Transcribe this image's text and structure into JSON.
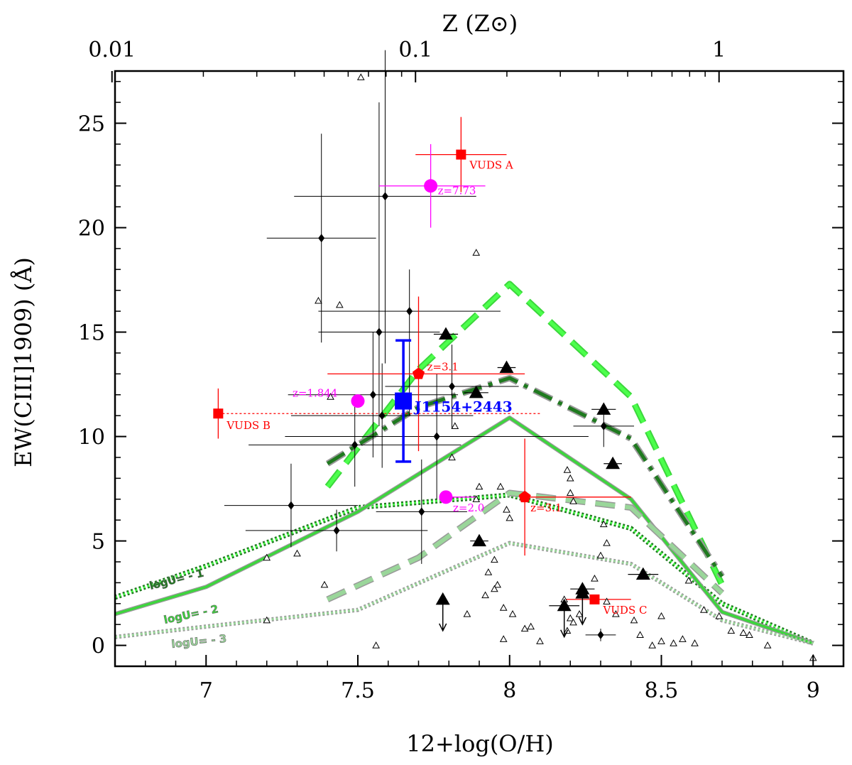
{
  "chart_data": {
    "type": "scatter",
    "title": "",
    "xlabel": "12+log(O/H)",
    "ylabel": "EW(CIII]1909) (Å)",
    "top_xlabel": "Z (Z⊙)",
    "xlim": [
      6.7,
      9.1
    ],
    "ylim": [
      -1,
      27.5
    ],
    "x_ticks": [
      7,
      7.5,
      8,
      8.5,
      9
    ],
    "x_tick_labels": [
      "7",
      "7.5",
      "8",
      "8.5",
      "9"
    ],
    "y_ticks": [
      0,
      5,
      10,
      15,
      20,
      25
    ],
    "y_tick_labels": [
      "0",
      "5",
      "10",
      "15",
      "20",
      "25"
    ],
    "top_ticks": [
      {
        "oh": 6.69,
        "label": "0.01"
      },
      {
        "oh": 7.69,
        "label": "0.1"
      },
      {
        "oh": 8.69,
        "label": "1"
      }
    ],
    "colors": {
      "models_u1": "#1f7a1f",
      "models_u1_core": "#4cff4c",
      "models_u2": "#3cd63c",
      "models_u2_edge": "#999999",
      "models_u3": "#9ad69a",
      "vuds": "#ff0000",
      "highz": "#ff00ff",
      "target": "#0000ff"
    },
    "models": [
      {
        "name": "logU=-1",
        "label": "logU= - 1",
        "style": "dotted-dark",
        "x": [
          6.7,
          7.0,
          7.5,
          8.0,
          8.4,
          8.7,
          9.0
        ],
        "y": [
          2.3,
          3.8,
          6.6,
          7.2,
          5.6,
          2.0,
          0.1
        ]
      },
      {
        "name": "logU=-2",
        "label": "logU= - 2",
        "style": "solid-green",
        "x": [
          6.7,
          7.0,
          7.5,
          8.0,
          8.4,
          8.7,
          9.0
        ],
        "y": [
          1.5,
          2.8,
          6.4,
          10.9,
          7.0,
          1.6,
          0.1
        ]
      },
      {
        "name": "logU=-3",
        "label": "logU= - 3",
        "style": "dotted-light",
        "x": [
          6.7,
          7.0,
          7.5,
          8.0,
          8.4,
          8.7,
          9.0
        ],
        "y": [
          0.4,
          0.9,
          1.7,
          4.9,
          3.9,
          1.2,
          0.1
        ]
      },
      {
        "name": "dash-bright",
        "style": "dashed-bright",
        "x": [
          7.4,
          7.7,
          8.0,
          8.4,
          8.7
        ],
        "y": [
          7.6,
          13.2,
          17.3,
          11.9,
          2.9
        ]
      },
      {
        "name": "dash-dark",
        "style": "dashed-dark",
        "x": [
          7.4,
          7.7,
          8.0,
          8.4,
          8.7
        ],
        "y": [
          8.7,
          11.4,
          12.8,
          9.9,
          3.3
        ]
      },
      {
        "name": "dash-light",
        "style": "dashed-light",
        "x": [
          7.4,
          7.7,
          8.0,
          8.4,
          8.7
        ],
        "y": [
          2.2,
          4.2,
          7.3,
          6.6,
          2.5
        ]
      }
    ],
    "literature_diamonds": [
      {
        "x": 7.38,
        "y": 19.5,
        "xerr": 0.18,
        "yerr": [
          5.0,
          5.0
        ]
      },
      {
        "x": 7.59,
        "y": 21.5,
        "xerr": 0.3,
        "yerr": [
          8.0,
          7.0
        ]
      },
      {
        "x": 7.57,
        "y": 15.0,
        "xerr": 0.2,
        "yerr": [
          4.5,
          11.0
        ]
      },
      {
        "x": 7.67,
        "y": 16.0,
        "xerr": 0.3,
        "yerr": [
          5.0,
          2.0
        ]
      },
      {
        "x": 7.55,
        "y": 12.0,
        "xerr": 0.28,
        "yerr": [
          3.0,
          3.0
        ]
      },
      {
        "x": 7.81,
        "y": 12.4,
        "xerr": 0.22,
        "yerr": [
          2.0,
          2.0
        ]
      },
      {
        "x": 7.58,
        "y": 11.0,
        "xerr": 0.3,
        "yerr": [
          2.5,
          2.5
        ]
      },
      {
        "x": 7.49,
        "y": 9.6,
        "xerr": 0.35,
        "yerr": [
          2.0,
          2.0
        ]
      },
      {
        "x": 7.76,
        "y": 10.0,
        "xerr": 0.5,
        "yerr": [
          3.0,
          3.0
        ]
      },
      {
        "x": 7.28,
        "y": 6.7,
        "xerr": 0.22,
        "yerr": [
          2.0,
          2.0
        ]
      },
      {
        "x": 7.43,
        "y": 5.5,
        "xerr": 0.3,
        "yerr": [
          1.0,
          1.0
        ]
      },
      {
        "x": 7.71,
        "y": 6.4,
        "xerr": 0.15,
        "yerr": [
          2.5,
          2.5
        ]
      },
      {
        "x": 8.31,
        "y": 10.5,
        "xerr": 0.1,
        "yerr": [
          1.0,
          1.0
        ]
      },
      {
        "x": 8.3,
        "y": 0.5,
        "xerr": 0.05,
        "yerr": [
          0.3,
          0.3
        ]
      }
    ],
    "open_triangles": [
      [
        7.51,
        27.2
      ],
      [
        7.37,
        16.5
      ],
      [
        7.44,
        16.3
      ],
      [
        7.89,
        18.8
      ],
      [
        7.82,
        10.5
      ],
      [
        7.9,
        7.6
      ],
      [
        7.41,
        11.9
      ],
      [
        7.97,
        7.6
      ],
      [
        7.81,
        9.0
      ],
      [
        7.89,
        7.0
      ],
      [
        7.99,
        6.5
      ],
      [
        8.0,
        6.1
      ],
      [
        8.19,
        8.4
      ],
      [
        8.2,
        8.0
      ],
      [
        8.2,
        7.3
      ],
      [
        8.21,
        6.9
      ],
      [
        8.31,
        5.8
      ],
      [
        8.3,
        4.3
      ],
      [
        8.28,
        3.2
      ],
      [
        8.32,
        4.9
      ],
      [
        8.59,
        3.1
      ],
      [
        8.64,
        1.7
      ],
      [
        7.2,
        4.2
      ],
      [
        7.3,
        4.4
      ],
      [
        7.39,
        2.9
      ],
      [
        7.2,
        1.2
      ],
      [
        7.56,
        0.0
      ],
      [
        7.86,
        1.5
      ],
      [
        7.92,
        2.4
      ],
      [
        7.93,
        3.5
      ],
      [
        7.95,
        4.1
      ],
      [
        7.96,
        2.9
      ],
      [
        7.95,
        2.7
      ],
      [
        7.98,
        1.8
      ],
      [
        8.01,
        1.5
      ],
      [
        7.98,
        0.3
      ],
      [
        8.05,
        0.8
      ],
      [
        8.07,
        0.9
      ],
      [
        8.1,
        0.2
      ],
      [
        8.18,
        2.2
      ],
      [
        8.2,
        1.3
      ],
      [
        8.19,
        0.7
      ],
      [
        8.21,
        1.1
      ],
      [
        8.23,
        1.5
      ],
      [
        8.32,
        2.1
      ],
      [
        8.35,
        1.5
      ],
      [
        8.41,
        1.2
      ],
      [
        8.5,
        1.4
      ],
      [
        8.5,
        0.2
      ],
      [
        8.54,
        0.1
      ],
      [
        8.57,
        0.3
      ],
      [
        8.61,
        0.1
      ],
      [
        8.69,
        1.4
      ],
      [
        8.73,
        0.7
      ],
      [
        8.77,
        0.6
      ],
      [
        8.79,
        0.5
      ],
      [
        8.85,
        0.0
      ],
      [
        9.0,
        -0.6
      ],
      [
        8.43,
        0.5
      ],
      [
        8.47,
        0.0
      ]
    ],
    "filled_triangles": [
      {
        "x": 7.79,
        "y": 14.9,
        "xerr": 0.04
      },
      {
        "x": 7.99,
        "y": 13.3,
        "xerr": 0.03
      },
      {
        "x": 7.89,
        "y": 12.1,
        "xerr": 0.04
      },
      {
        "x": 8.31,
        "y": 11.3,
        "xerr": 0.04
      },
      {
        "x": 8.34,
        "y": 8.7,
        "xerr": 0.03
      },
      {
        "x": 7.9,
        "y": 5.0,
        "xerr": 0.03
      },
      {
        "x": 8.44,
        "y": 3.4,
        "xerr": 0.05
      },
      {
        "x": 8.24,
        "y": 2.7,
        "xerr": 0.04
      },
      {
        "x": 8.18,
        "y": 1.9,
        "xerr": 0.05,
        "upper": true
      },
      {
        "x": 7.78,
        "y": 2.2,
        "xerr": 0.0,
        "upper": true
      },
      {
        "x": 8.24,
        "y": 2.5,
        "xerr": 0.0,
        "upper": true
      }
    ],
    "vuds": [
      {
        "label": "VUDS A",
        "x": 7.84,
        "y": 23.5,
        "xerr": [
          0.15,
          0.15
        ],
        "yerr": [
          1.8,
          1.8
        ]
      },
      {
        "label": "VUDS B",
        "x": 7.04,
        "y": 11.1,
        "xerr": [
          0.0,
          1.06
        ],
        "yerr": [
          1.2,
          1.2
        ]
      },
      {
        "label": "VUDS C",
        "x": 8.28,
        "y": 2.2,
        "xerr": [
          0.1,
          0.12
        ],
        "yerr": [
          0.0,
          0.0
        ]
      }
    ],
    "red_pentagons": [
      {
        "label": "z=3.1",
        "x": 7.7,
        "y": 13.0,
        "xerr": [
          0.3,
          0.35
        ],
        "yerr": [
          3.7,
          3.7
        ]
      },
      {
        "label": "z=3.1",
        "x": 8.05,
        "y": 7.1,
        "xerr": [
          0.0,
          0.35
        ],
        "yerr": [
          2.8,
          2.8
        ]
      }
    ],
    "magenta_circles": [
      {
        "label": "z=7.73",
        "x": 7.74,
        "y": 22.0,
        "xerr": [
          0.17,
          0.18
        ],
        "yerr": [
          2.0,
          2.0
        ]
      },
      {
        "label": "z=1.844",
        "x": 7.5,
        "y": 11.7,
        "xerr": [
          0.0,
          0.0
        ],
        "yerr": [
          0.0,
          0.0
        ]
      },
      {
        "label": "z=2.0",
        "x": 7.79,
        "y": 7.1,
        "xerr": [
          0.0,
          0.1
        ],
        "yerr": [
          0.0,
          0.0
        ]
      }
    ],
    "target": {
      "label": "J1154+2443",
      "x": 7.65,
      "y": 11.7,
      "yerr": [
        2.9,
        2.9
      ]
    }
  }
}
